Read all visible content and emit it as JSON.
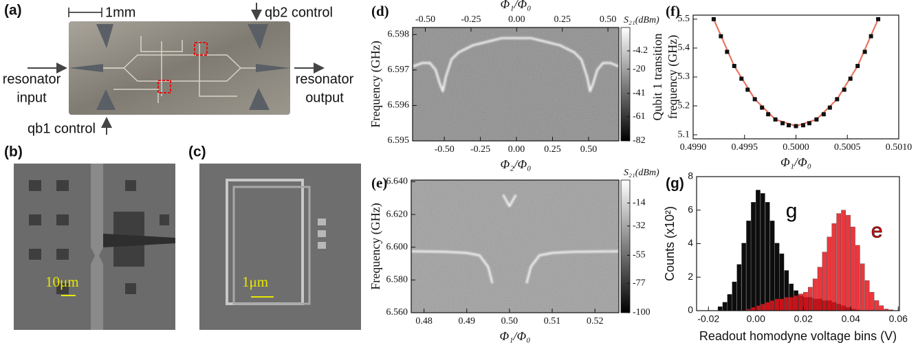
{
  "panel_a": {
    "label": "(a)",
    "scale_bar": "1mm",
    "qb2_label": "qb2 control",
    "input_label": [
      "resonator",
      "input"
    ],
    "output_label": [
      "resonator",
      "output"
    ],
    "qb1_label": "qb1 control"
  },
  "panel_b": {
    "label": "(b)",
    "scale_bar": "10μm"
  },
  "panel_c": {
    "label": "(c)",
    "scale_bar": "1μm"
  },
  "chart_data": [
    {
      "type": "heatmap",
      "label": "(d)",
      "x_label": "Φ₂/Φ₀",
      "x2_label": "Φ₁/Φ₀",
      "y_label": "Frequency (GHz)",
      "colorbar_label": "S₂₁(dBm)",
      "xlim": [
        -0.72,
        0.71
      ],
      "xticks": [
        {
          "value": -0.5,
          "label": "-0.50"
        },
        -0.25,
        {
          "value": 0,
          "label": "0.00"
        },
        0.25,
        {
          "value": 0.5,
          "label": "0.50"
        }
      ],
      "x2lim": [
        -0.57,
        0.56
      ],
      "x2ticks": [
        {
          "value": -0.5,
          "label": "-0.50"
        },
        -0.25,
        {
          "value": 0,
          "label": "0.00"
        },
        0.25,
        {
          "value": 0.5,
          "label": "0.50"
        }
      ],
      "ylim": [
        6.595,
        6.5982
      ],
      "yticks": [
        6.595,
        6.596,
        6.597,
        6.598
      ],
      "clim": [
        -82,
        16
      ],
      "cticks": [
        -4.2,
        -20,
        -41,
        -61,
        -82
      ],
      "background": "#8c8c8c",
      "series": [
        {
          "color": "#f2f2f2",
          "x": [
            -0.72,
            -0.65,
            -0.6,
            -0.56,
            -0.53,
            -0.51,
            -0.49,
            -0.45,
            -0.4,
            -0.3,
            -0.2,
            -0.1,
            0,
            0.1,
            0.2,
            0.3,
            0.4,
            0.45,
            0.49,
            0.51,
            0.53,
            0.56,
            0.6,
            0.65,
            0.71
          ],
          "values": [
            6.5971,
            6.5972,
            6.5972,
            6.597,
            6.5966,
            6.5964,
            6.5968,
            6.5973,
            6.5975,
            6.5977,
            6.5978,
            6.5979,
            6.5979,
            6.5979,
            6.5978,
            6.5977,
            6.5975,
            6.5973,
            6.5968,
            6.5964,
            6.5966,
            6.597,
            6.5972,
            6.5972,
            6.5971
          ]
        }
      ]
    },
    {
      "type": "heatmap",
      "label": "(e)",
      "x_label": "Φ₁/Φ₀",
      "y_label": "Frequency (GHz)",
      "colorbar_label": "S₂₁(dBm)",
      "xlim": [
        0.477,
        0.5256
      ],
      "xticks": [
        0.48,
        0.49,
        {
          "value": 0.5,
          "label": "0.50"
        },
        0.51,
        0.52
      ],
      "ylim": [
        6.56,
        6.641
      ],
      "yticks": [
        {
          "value": 6.56,
          "label": "6.560"
        },
        {
          "value": 6.58,
          "label": "6.580"
        },
        {
          "value": 6.6,
          "label": "6.600"
        },
        {
          "value": 6.62,
          "label": "6.620"
        },
        {
          "value": 6.64,
          "label": "6.640"
        }
      ],
      "clim": [
        -100,
        4
      ],
      "cticks": [
        -14,
        -32,
        -55,
        -77,
        -100
      ],
      "background": "#9e9e9e",
      "series": [
        {
          "color": "#f2f2f2",
          "x": [
            0.477,
            0.485,
            0.49,
            0.493,
            0.495,
            0.496,
            0.4975,
            0.4985,
            0.5,
            0.5015,
            0.503,
            0.504,
            0.505,
            0.507,
            0.51,
            0.515,
            0.5256
          ],
          "values": [
            6.5975,
            6.5972,
            6.5965,
            6.595,
            6.588,
            6.578,
            null,
            6.632,
            6.625,
            6.632,
            null,
            6.578,
            6.588,
            6.595,
            6.5965,
            6.5972,
            6.5975
          ]
        }
      ]
    },
    {
      "type": "scatter",
      "label": "(f)",
      "x_label": "Φ₁/Φ₀",
      "y_label": [
        "Qubit 1 transition",
        "frequency (GHz)"
      ],
      "xlim": [
        0.499,
        0.501
      ],
      "xticks": [
        {
          "value": 0.499,
          "label": "0.4990"
        },
        0.4995,
        {
          "value": 0.5,
          "label": "0.5000"
        },
        0.5005,
        {
          "value": 0.501,
          "label": "0.5010"
        }
      ],
      "ylim": [
        5.086,
        5.514
      ],
      "yticks": [
        5.1,
        5.2,
        5.3,
        5.4,
        5.5
      ],
      "series": [
        {
          "mode": "line",
          "color": "#e8735f",
          "x": [
            0.4992,
            0.4994,
            0.4996,
            0.4998,
            0.5,
            0.5002,
            0.5004,
            0.5006,
            0.5008
          ],
          "values": [
            5.5,
            5.338,
            5.223,
            5.153,
            5.13,
            5.153,
            5.223,
            5.338,
            5.5
          ]
        },
        {
          "mode": "markers",
          "color": "#111111",
          "x": [
            0.4992,
            0.49927,
            0.49933,
            0.4994,
            0.49947,
            0.49953,
            0.4996,
            0.49967,
            0.49973,
            0.4998,
            0.49987,
            0.49993,
            0.5,
            0.50007,
            0.50013,
            0.5002,
            0.50027,
            0.50033,
            0.5004,
            0.50047,
            0.50053,
            0.5006,
            0.50067,
            0.50073,
            0.5008
          ],
          "values": [
            5.5,
            5.441,
            5.387,
            5.338,
            5.294,
            5.256,
            5.223,
            5.194,
            5.171,
            5.153,
            5.14,
            5.133,
            5.13,
            5.133,
            5.14,
            5.153,
            5.171,
            5.194,
            5.223,
            5.256,
            5.294,
            5.338,
            5.387,
            5.441,
            5.5
          ]
        }
      ]
    },
    {
      "type": "histogram",
      "label": "(g)",
      "x_label": "Readout homodyne voltage bins (V)",
      "y_label": "Counts (x10²)",
      "xlim": [
        -0.025,
        0.0605
      ],
      "xticks": [
        -0.02,
        {
          "value": 0,
          "label": "0.00"
        },
        0.02,
        0.04,
        0.06
      ],
      "ylim": [
        0,
        8
      ],
      "yticks": [
        0,
        2,
        4,
        6,
        8
      ],
      "bins": [
        -0.016,
        -0.014,
        -0.012,
        -0.01,
        -0.008,
        -0.006,
        -0.004,
        -0.002,
        0,
        0.002,
        0.004,
        0.006,
        0.008,
        0.01,
        0.012,
        0.014,
        0.016,
        0.018,
        0.02,
        0.022,
        0.024,
        0.026,
        0.028,
        0.03,
        0.032,
        0.034,
        0.036,
        0.038,
        0.04,
        0.042,
        0.044,
        0.046,
        0.048,
        0.05,
        0.052,
        0.054,
        0.056,
        0.058
      ],
      "series": [
        {
          "name": "g",
          "color": "#000000",
          "values": [
            0.24,
            0.5,
            0.97,
            1.72,
            2.76,
            4.03,
            5.36,
            6.47,
            7.2,
            7.0,
            6.47,
            5.36,
            4.03,
            3.4,
            2.4,
            1.6,
            1.2,
            0.9,
            0.8,
            0.8,
            0.7,
            0.7,
            0.6,
            0.6,
            0.5,
            0.4,
            0.3,
            0.2,
            0.1,
            0.05,
            0,
            0,
            0,
            0,
            0,
            0,
            0
          ]
        },
        {
          "name": "e",
          "color": "#e8141b",
          "values": [
            0,
            0,
            0,
            0,
            0,
            0,
            0.1,
            0.2,
            0.3,
            0.4,
            0.5,
            0.6,
            0.7,
            0.7,
            0.8,
            0.8,
            0.9,
            1.0,
            1.1,
            1.4,
            1.9,
            2.6,
            3.5,
            4.4,
            5.2,
            5.8,
            6.0,
            5.7,
            5.0,
            3.9,
            2.8,
            1.8,
            1.1,
            0.6,
            0.3,
            0.1,
            0.05
          ]
        }
      ]
    }
  ]
}
